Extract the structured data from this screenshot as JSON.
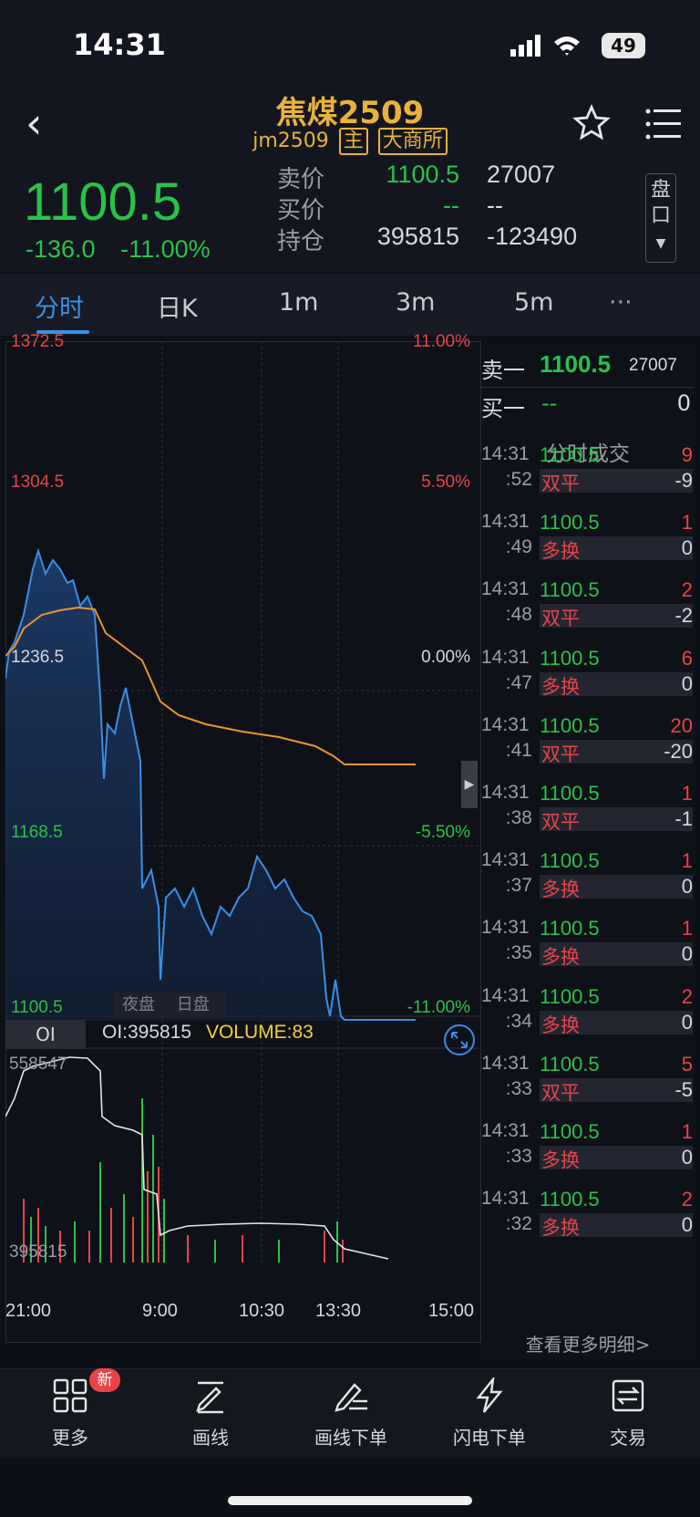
{
  "status_bar": {
    "time": "14:31",
    "battery": "49"
  },
  "header": {
    "title": "焦煤2509",
    "code": "jm2509",
    "tag_main": "主",
    "tag_exchange": "大商所"
  },
  "quote": {
    "price": "1100.5",
    "change": "-136.0",
    "change_pct": "-11.00%",
    "ask_label": "卖价",
    "ask": "1100.5",
    "ask_vol": "27007",
    "bid_label": "买价",
    "bid": "--",
    "bid_vol": "--",
    "oi_label": "持仓",
    "oi": "395815",
    "oi_chg": "-123490",
    "pankou": "盘口"
  },
  "tabs": [
    "分时",
    "日K",
    "1m",
    "3m",
    "5m",
    "···"
  ],
  "chart": {
    "y_left": [
      "1372.5",
      "1304.5",
      "1236.5",
      "1168.5",
      "1100.5"
    ],
    "y_right": [
      "11.00%",
      "5.50%",
      "0.00%",
      "-5.50%",
      "-11.00%"
    ],
    "session_night": "夜盘",
    "session_day": "日盘",
    "oi_tab": "OI",
    "oi_text": "OI:395815",
    "volume_text": "VOLUME:83",
    "oi_max": "558547",
    "oi_min": "395815",
    "x_labels": [
      "21:00",
      "9:00",
      "10:30",
      "13:30",
      "15:00"
    ],
    "colors": {
      "price_line": "#3a8ee6",
      "avg_line": "#e8962c",
      "up": "#e8434b",
      "down": "#29c24a"
    }
  },
  "orderbook": {
    "sell_label": "卖一",
    "sell_price": "1100.5",
    "sell_vol": "27007",
    "buy_label": "买一",
    "buy_price": "--",
    "buy_vol": "0"
  },
  "trades_title": "分时成交",
  "trades": [
    {
      "t1": "14:31",
      "t2": ":52",
      "price": "1100.5",
      "vol": "9",
      "type": "双平",
      "oi": "-9"
    },
    {
      "t1": "14:31",
      "t2": ":49",
      "price": "1100.5",
      "vol": "1",
      "type": "多换",
      "oi": "0"
    },
    {
      "t1": "14:31",
      "t2": ":48",
      "price": "1100.5",
      "vol": "2",
      "type": "双平",
      "oi": "-2"
    },
    {
      "t1": "14:31",
      "t2": ":47",
      "price": "1100.5",
      "vol": "6",
      "type": "多换",
      "oi": "0"
    },
    {
      "t1": "14:31",
      "t2": ":41",
      "price": "1100.5",
      "vol": "20",
      "type": "双平",
      "oi": "-20"
    },
    {
      "t1": "14:31",
      "t2": ":38",
      "price": "1100.5",
      "vol": "1",
      "type": "双平",
      "oi": "-1"
    },
    {
      "t1": "14:31",
      "t2": ":37",
      "price": "1100.5",
      "vol": "1",
      "type": "多换",
      "oi": "0"
    },
    {
      "t1": "14:31",
      "t2": ":35",
      "price": "1100.5",
      "vol": "1",
      "type": "多换",
      "oi": "0"
    },
    {
      "t1": "14:31",
      "t2": ":34",
      "price": "1100.5",
      "vol": "2",
      "type": "多换",
      "oi": "0"
    },
    {
      "t1": "14:31",
      "t2": ":33",
      "price": "1100.5",
      "vol": "5",
      "type": "双平",
      "oi": "-5"
    },
    {
      "t1": "14:31",
      "t2": ":33",
      "price": "1100.5",
      "vol": "1",
      "type": "多换",
      "oi": "0"
    },
    {
      "t1": "14:31",
      "t2": ":32",
      "price": "1100.5",
      "vol": "2",
      "type": "多换",
      "oi": "0"
    }
  ],
  "more_detail": "查看更多明细>",
  "bottom_nav": [
    {
      "label": "更多",
      "icon": "grid-icon",
      "badge": "新"
    },
    {
      "label": "画线",
      "icon": "draw-line-icon"
    },
    {
      "label": "画线下单",
      "icon": "draw-order-icon"
    },
    {
      "label": "闪电下单",
      "icon": "lightning-icon"
    },
    {
      "label": "交易",
      "icon": "trade-icon"
    }
  ]
}
